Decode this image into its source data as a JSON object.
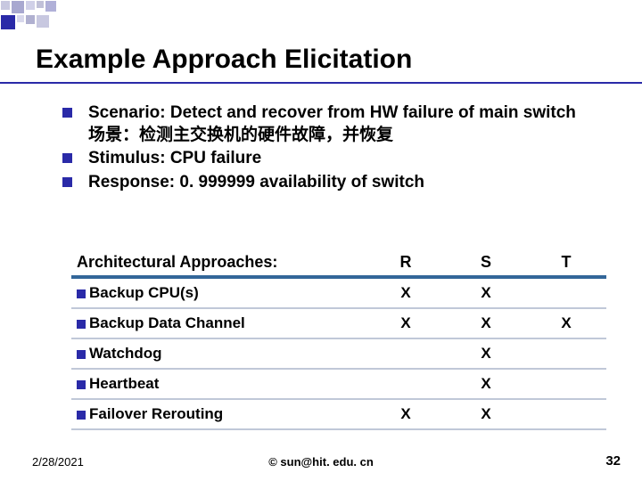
{
  "deco": {
    "squares": [
      {
        "w": 10,
        "h": 10,
        "c": "#c8c8e0"
      },
      {
        "w": 14,
        "h": 14,
        "c": "#a8a8d0"
      },
      {
        "w": 10,
        "h": 10,
        "c": "#d0d0e8"
      },
      {
        "w": 8,
        "h": 8,
        "c": "#c0c0d8"
      },
      {
        "w": 12,
        "h": 12,
        "c": "#b0b0d8"
      },
      {
        "w": 16,
        "h": 16,
        "c": "#2a2aa8"
      },
      {
        "w": 8,
        "h": 8,
        "c": "#d8d8ec"
      },
      {
        "w": 10,
        "h": 10,
        "c": "#b0b0d0"
      },
      {
        "w": 14,
        "h": 14,
        "c": "#c8c8e0"
      }
    ]
  },
  "title": "Example Approach Elicitation",
  "bullets": [
    {
      "text_en": "Scenario: Detect and recover from HW failure of main switch",
      "text_zh": "场景：检测主交换机的硬件故障，并恢复"
    },
    {
      "text_en": "Stimulus: CPU failure"
    },
    {
      "text_en": "Response: 0. 999999 availability of switch"
    }
  ],
  "table": {
    "header": {
      "approach": "Architectural Approaches:",
      "r": "R",
      "s": "S",
      "t": "T"
    },
    "rows": [
      {
        "label": "Backup CPU(s)",
        "r": "X",
        "s": "X",
        "t": ""
      },
      {
        "label": "Backup Data Channel",
        "r": "X",
        "s": "X",
        "t": "X"
      },
      {
        "label": "Watchdog",
        "r": "",
        "s": "X",
        "t": ""
      },
      {
        "label": "Heartbeat",
        "r": "",
        "s": "X",
        "t": ""
      },
      {
        "label": "Failover Rerouting",
        "r": "X",
        "s": "X",
        "t": ""
      }
    ]
  },
  "footer": {
    "date": "2/28/2021",
    "copy": "© sun@hit. edu. cn",
    "page": "32"
  },
  "colors": {
    "accent": "#2a2aa8",
    "header_rule": "#336699",
    "row_rule": "#c0c8d8"
  }
}
